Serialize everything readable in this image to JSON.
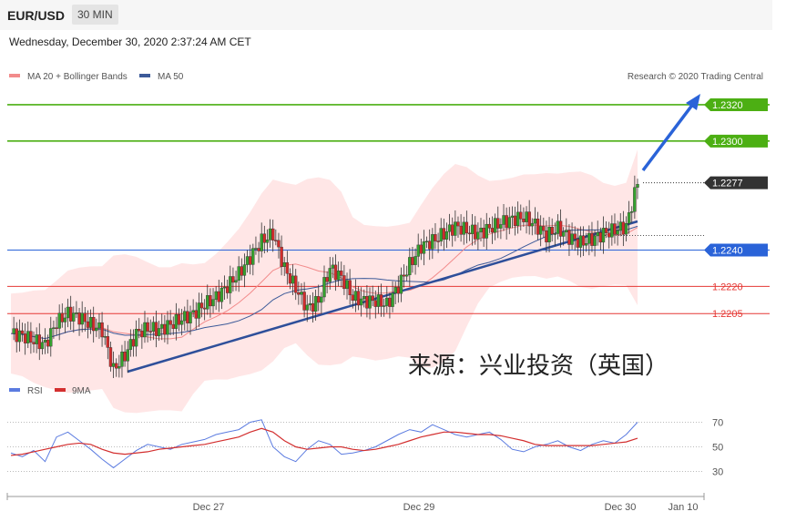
{
  "header": {
    "pair": "EUR/USD",
    "timeframe": "30 MIN"
  },
  "date_text": "Wednesday, December 30, 2020 2:37:24 AM CET",
  "legend": {
    "ma20": "MA 20 + Bollinger Bands",
    "ma50": "MA 50"
  },
  "copyright": "Research © 2020 Trading Central",
  "watermark": "来源：兴业投资（英国）",
  "rsi_legend": {
    "rsi": "RSI",
    "ma9": "9MA"
  },
  "colors": {
    "green": "#4caf13",
    "blue": "#2a63d8",
    "red": "#e53935",
    "dark": "#333333",
    "trend": "#2e4f9a",
    "band": "#ffd6d6",
    "ma20": "#f28b8b",
    "ma50": "#3c5a99",
    "rsi": "#5b7be0",
    "rsi_ma": "#d32f2f"
  },
  "chart_data": [
    {
      "type": "candlestick",
      "title": "EUR/USD",
      "ylim": [
        1.2167,
        1.233
      ],
      "x_ticks": [
        "Dec 27",
        "Dec 29",
        "Dec 30",
        "Jan 10"
      ],
      "levels": [
        {
          "value": 1.232,
          "label": "1.2320",
          "color": "#4caf13",
          "kind": "target"
        },
        {
          "value": 1.23,
          "label": "1.2300",
          "color": "#4caf13",
          "kind": "target"
        },
        {
          "value": 1.2277,
          "label": "1.2277",
          "color": "#333333",
          "kind": "last"
        },
        {
          "value": 1.224,
          "label": "1.2240",
          "color": "#2a63d8",
          "kind": "pivot"
        },
        {
          "value": 1.222,
          "label": "1.2220",
          "color": "#e53935",
          "kind": "support"
        },
        {
          "value": 1.2205,
          "label": "1.2205",
          "color": "#e53935",
          "kind": "support"
        }
      ],
      "close_path": [
        1.2194,
        1.2193,
        1.219,
        1.2188,
        1.22,
        1.2205,
        1.2203,
        1.2199,
        1.2196,
        1.2174,
        1.2182,
        1.2194,
        1.2197,
        1.2196,
        1.2199,
        1.2202,
        1.2205,
        1.221,
        1.2214,
        1.222,
        1.2227,
        1.2236,
        1.2245,
        1.2249,
        1.223,
        1.2219,
        1.2208,
        1.2212,
        1.223,
        1.2225,
        1.2214,
        1.2212,
        1.2212,
        1.221,
        1.222,
        1.2232,
        1.2242,
        1.2245,
        1.2249,
        1.2253,
        1.2251,
        1.2249,
        1.2252,
        1.2255,
        1.2257,
        1.2258,
        1.2254,
        1.2248,
        1.2252,
        1.2247,
        1.2244,
        1.2246,
        1.2249,
        1.2251,
        1.2253,
        1.2277
      ]
    },
    {
      "type": "line",
      "title": "RSI",
      "ylim": [
        20,
        80
      ],
      "y_ticks": [
        70,
        50,
        30
      ],
      "series": [
        {
          "name": "RSI",
          "values": [
            45,
            42,
            47,
            38,
            58,
            62,
            55,
            48,
            40,
            33,
            40,
            47,
            52,
            50,
            48,
            52,
            54,
            56,
            60,
            62,
            64,
            70,
            72,
            50,
            42,
            38,
            48,
            55,
            52,
            44,
            45,
            47,
            50,
            55,
            60,
            64,
            62,
            68,
            64,
            60,
            58,
            60,
            62,
            56,
            48,
            46,
            50,
            52,
            55,
            50,
            47,
            52,
            55,
            53,
            60,
            70
          ]
        },
        {
          "name": "9MA",
          "values": [
            43,
            44,
            46,
            48,
            50,
            52,
            53,
            52,
            48,
            45,
            44,
            45,
            46,
            48,
            49,
            50,
            51,
            52,
            54,
            56,
            58,
            62,
            65,
            62,
            55,
            50,
            48,
            49,
            50,
            50,
            48,
            47,
            48,
            50,
            52,
            55,
            58,
            60,
            62,
            62,
            61,
            60,
            60,
            59,
            57,
            55,
            52,
            51,
            51,
            51,
            51,
            51,
            52,
            53,
            54,
            57
          ]
        }
      ]
    }
  ]
}
